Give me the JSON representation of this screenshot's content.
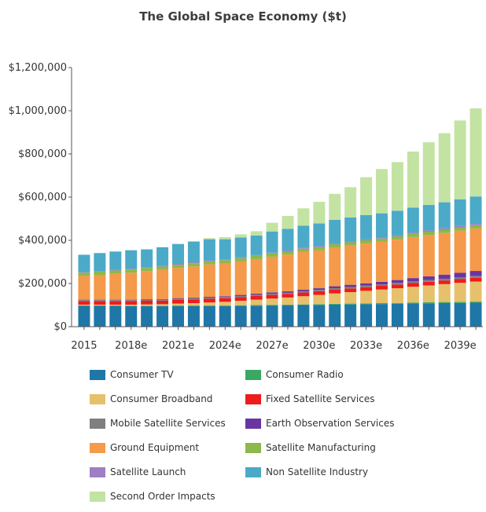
{
  "chart_data": {
    "type": "bar",
    "stacked": true,
    "title": "The Global Space Economy ($t)",
    "xlabel": "",
    "ylabel": "",
    "ylim": [
      0,
      1200000
    ],
    "yticks": [
      "$0",
      "$200,000",
      "$400,000",
      "$600,000",
      "$800,000",
      "$1,000,000",
      "$1,200,000"
    ],
    "grid": false,
    "legend_position": "bottom",
    "categories": [
      "2015",
      "2016",
      "2017",
      "2018e",
      "2019e",
      "2020e",
      "2021e",
      "2022e",
      "2023e",
      "2024e",
      "2025e",
      "2026e",
      "2027e",
      "2028e",
      "2029e",
      "2030e",
      "2031e",
      "2032e",
      "2033e",
      "2034e",
      "2035e",
      "2036e",
      "2037e",
      "2038e",
      "2039e",
      "2040e"
    ],
    "xtick_labels": {
      "0": "2015",
      "3": "2018e",
      "6": "2021e",
      "9": "2024e",
      "12": "2027e",
      "15": "2030e",
      "18": "2033e",
      "21": "2036e",
      "24": "2039e"
    },
    "series": [
      {
        "name": "Consumer TV",
        "color": "#1f77a8",
        "values": [
          97000,
          97000,
          96000,
          95000,
          95000,
          95000,
          95000,
          95000,
          95000,
          95000,
          96000,
          97000,
          98000,
          99000,
          100000,
          101000,
          102000,
          103000,
          104000,
          105000,
          106000,
          107000,
          108000,
          109000,
          110000,
          111000
        ]
      },
      {
        "name": "Consumer Radio",
        "color": "#3aa865",
        "values": [
          2000,
          2000,
          2000,
          2000,
          2000,
          2000,
          3000,
          3000,
          3000,
          3000,
          3000,
          3000,
          3000,
          3000,
          3000,
          3000,
          4000,
          4000,
          4000,
          4000,
          4000,
          5000,
          5000,
          5000,
          5000,
          5000
        ]
      },
      {
        "name": "Consumer Broadband",
        "color": "#e6c06a",
        "values": [
          3000,
          3000,
          4000,
          5000,
          6000,
          7000,
          9000,
          11000,
          14000,
          17000,
          21000,
          25000,
          29000,
          33000,
          38000,
          43000,
          48000,
          53000,
          58000,
          63000,
          68000,
          73000,
          78000,
          83000,
          88000,
          93000
        ]
      },
      {
        "name": "Fixed Satellite Services",
        "color": "#ee1c1c",
        "values": [
          17000,
          17000,
          17000,
          17000,
          17000,
          17000,
          17000,
          17000,
          17000,
          17000,
          17000,
          17000,
          17000,
          17000,
          17000,
          17000,
          17000,
          17000,
          17000,
          17000,
          17000,
          17000,
          17000,
          17000,
          17000,
          17000
        ]
      },
      {
        "name": "Mobile Satellite Services",
        "color": "#7f7f7f",
        "values": [
          4000,
          4000,
          4000,
          4000,
          4000,
          4000,
          5000,
          5000,
          5000,
          5000,
          5000,
          6000,
          6000,
          6000,
          6000,
          6000,
          7000,
          7000,
          7000,
          7000,
          8000,
          8000,
          8000,
          8000,
          9000,
          9000
        ]
      },
      {
        "name": "Earth Observation Services",
        "color": "#6a35a0",
        "values": [
          2000,
          2000,
          2000,
          2000,
          3000,
          3000,
          3000,
          3000,
          4000,
          4000,
          5000,
          5000,
          6000,
          6000,
          7000,
          8000,
          9000,
          10000,
          11000,
          12000,
          13000,
          15000,
          17000,
          19000,
          21000,
          23000
        ]
      },
      {
        "name": "Ground Equipment",
        "color": "#f5994a",
        "values": [
          110000,
          115000,
          120000,
          125000,
          130000,
          135000,
          140000,
          145000,
          150000,
          152000,
          155000,
          160000,
          165000,
          170000,
          175000,
          175000,
          180000,
          182000,
          184000,
          185000,
          187000,
          190000,
          192000,
          193000,
          195000,
          197000
        ]
      },
      {
        "name": "Satellite Manufacturing",
        "color": "#8db84b",
        "values": [
          15000,
          15000,
          15000,
          15000,
          15000,
          15000,
          15000,
          15000,
          15000,
          15000,
          15000,
          15000,
          15000,
          15000,
          15000,
          15000,
          15000,
          15000,
          15000,
          15000,
          15000,
          15000,
          15000,
          15000,
          15000,
          15000
        ]
      },
      {
        "name": "Satellite Launch",
        "color": "#9e7fc6",
        "values": [
          3000,
          3000,
          3000,
          3000,
          3000,
          3000,
          4000,
          4000,
          4000,
          4000,
          4000,
          4000,
          4000,
          4000,
          5000,
          5000,
          5000,
          5000,
          5000,
          5000,
          5000,
          6000,
          6000,
          6000,
          6000,
          6000
        ]
      },
      {
        "name": "Non Satellite Industry",
        "color": "#4baac8",
        "values": [
          80000,
          83000,
          85000,
          86000,
          83000,
          87000,
          92000,
          96000,
          98000,
          93000,
          92000,
          90000,
          98000,
          100000,
          102000,
          105000,
          108000,
          110000,
          112000,
          112000,
          114000,
          115000,
          118000,
          121000,
          124000,
          127000
        ]
      },
      {
        "name": "Second Order Impacts",
        "color": "#c3e3a3",
        "values": [
          0,
          0,
          0,
          0,
          0,
          0,
          0,
          2000,
          5000,
          10000,
          15000,
          20000,
          40000,
          60000,
          80000,
          100000,
          120000,
          140000,
          175000,
          205000,
          225000,
          260000,
          290000,
          320000,
          365000,
          408000
        ]
      }
    ]
  }
}
